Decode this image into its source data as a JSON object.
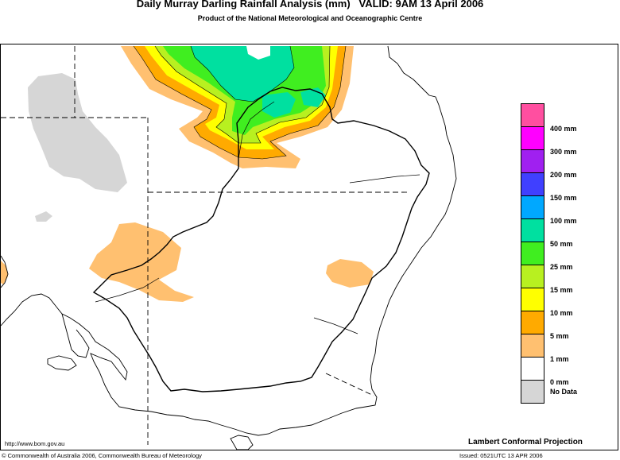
{
  "header": {
    "title": "Daily Murray Darling Rainfall Analysis (mm)   VALID: 9AM 13 April 2006",
    "subtitle": "Product of the National Meteorological and Oceanographic Centre"
  },
  "legend": {
    "items": [
      {
        "label": "400 mm",
        "color": "#ff4fa0"
      },
      {
        "label": "300 mm",
        "color": "#ff00ff"
      },
      {
        "label": "200 mm",
        "color": "#a020f0"
      },
      {
        "label": "150 mm",
        "color": "#4040ff"
      },
      {
        "label": "100 mm",
        "color": "#00a8ff"
      },
      {
        "label": "50 mm",
        "color": "#00e0a0"
      },
      {
        "label": "25 mm",
        "color": "#40ee20"
      },
      {
        "label": "15 mm",
        "color": "#b8f020"
      },
      {
        "label": "10 mm",
        "color": "#ffff00"
      },
      {
        "label": "5 mm",
        "color": "#ffaa00"
      },
      {
        "label": "1 mm",
        "color": "#ffc070"
      },
      {
        "label": "0 mm",
        "color": "#ffffff"
      },
      {
        "label": "No Data",
        "color": "#d6d6d6"
      }
    ]
  },
  "footer": {
    "url": "http://www.bom.gov.au",
    "copyright": "© Commonwealth of Australia 2006, Commonwealth Bureau of Meteorology",
    "projection": "Lambert Conformal Projection",
    "issued": "Issued: 0521UTC 13 APR 2006"
  }
}
